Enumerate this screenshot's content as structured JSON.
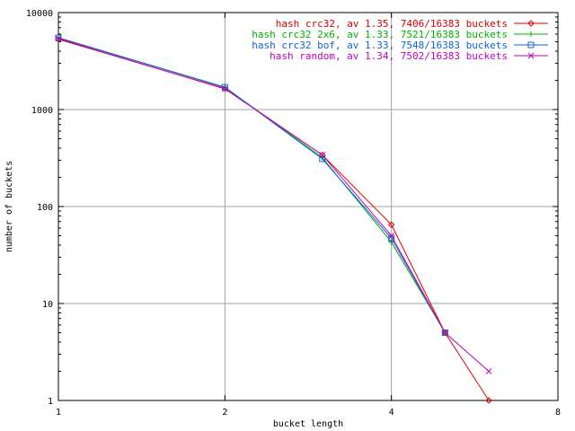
{
  "chart_data": {
    "type": "line",
    "title": "",
    "xlabel": "bucket length",
    "ylabel": "number of buckets",
    "x_scale": "log2",
    "y_scale": "log10",
    "xlim": [
      1,
      8
    ],
    "ylim": [
      1,
      10000
    ],
    "x_ticks": [
      1,
      2,
      4,
      8
    ],
    "x_tick_labels": [
      "1",
      "2",
      "4",
      "8"
    ],
    "y_ticks": [
      1,
      10,
      100,
      1000,
      10000
    ],
    "y_tick_labels": [
      "1",
      "10",
      "100",
      "1000",
      "10000"
    ],
    "grid": true,
    "legend_position": "top-right",
    "series": [
      {
        "name": "hash crc32, av 1.35, 7406/16383 buckets",
        "color": "#e00000",
        "marker": "diamond",
        "x": [
          1,
          2,
          3,
          4,
          5,
          6
        ],
        "y": [
          5300,
          1650,
          340,
          65,
          5,
          1
        ]
      },
      {
        "name": "hash crc32 2x6, av 1.33, 7521/16383 buckets",
        "color": "#00b000",
        "marker": "plus",
        "x": [
          1,
          2,
          3,
          4,
          5
        ],
        "y": [
          5500,
          1700,
          320,
          43,
          5
        ]
      },
      {
        "name": "hash crc32 bof, av 1.33, 7548/16383 buckets",
        "color": "#1060e0",
        "marker": "square",
        "x": [
          1,
          2,
          3,
          4,
          5
        ],
        "y": [
          5500,
          1700,
          310,
          47,
          5
        ]
      },
      {
        "name": "hash random, av 1.34, 7502/16383 buckets",
        "color": "#c000c0",
        "marker": "cross",
        "x": [
          1,
          2,
          3,
          4,
          5,
          6
        ],
        "y": [
          5400,
          1630,
          340,
          50,
          5,
          2
        ]
      }
    ]
  }
}
